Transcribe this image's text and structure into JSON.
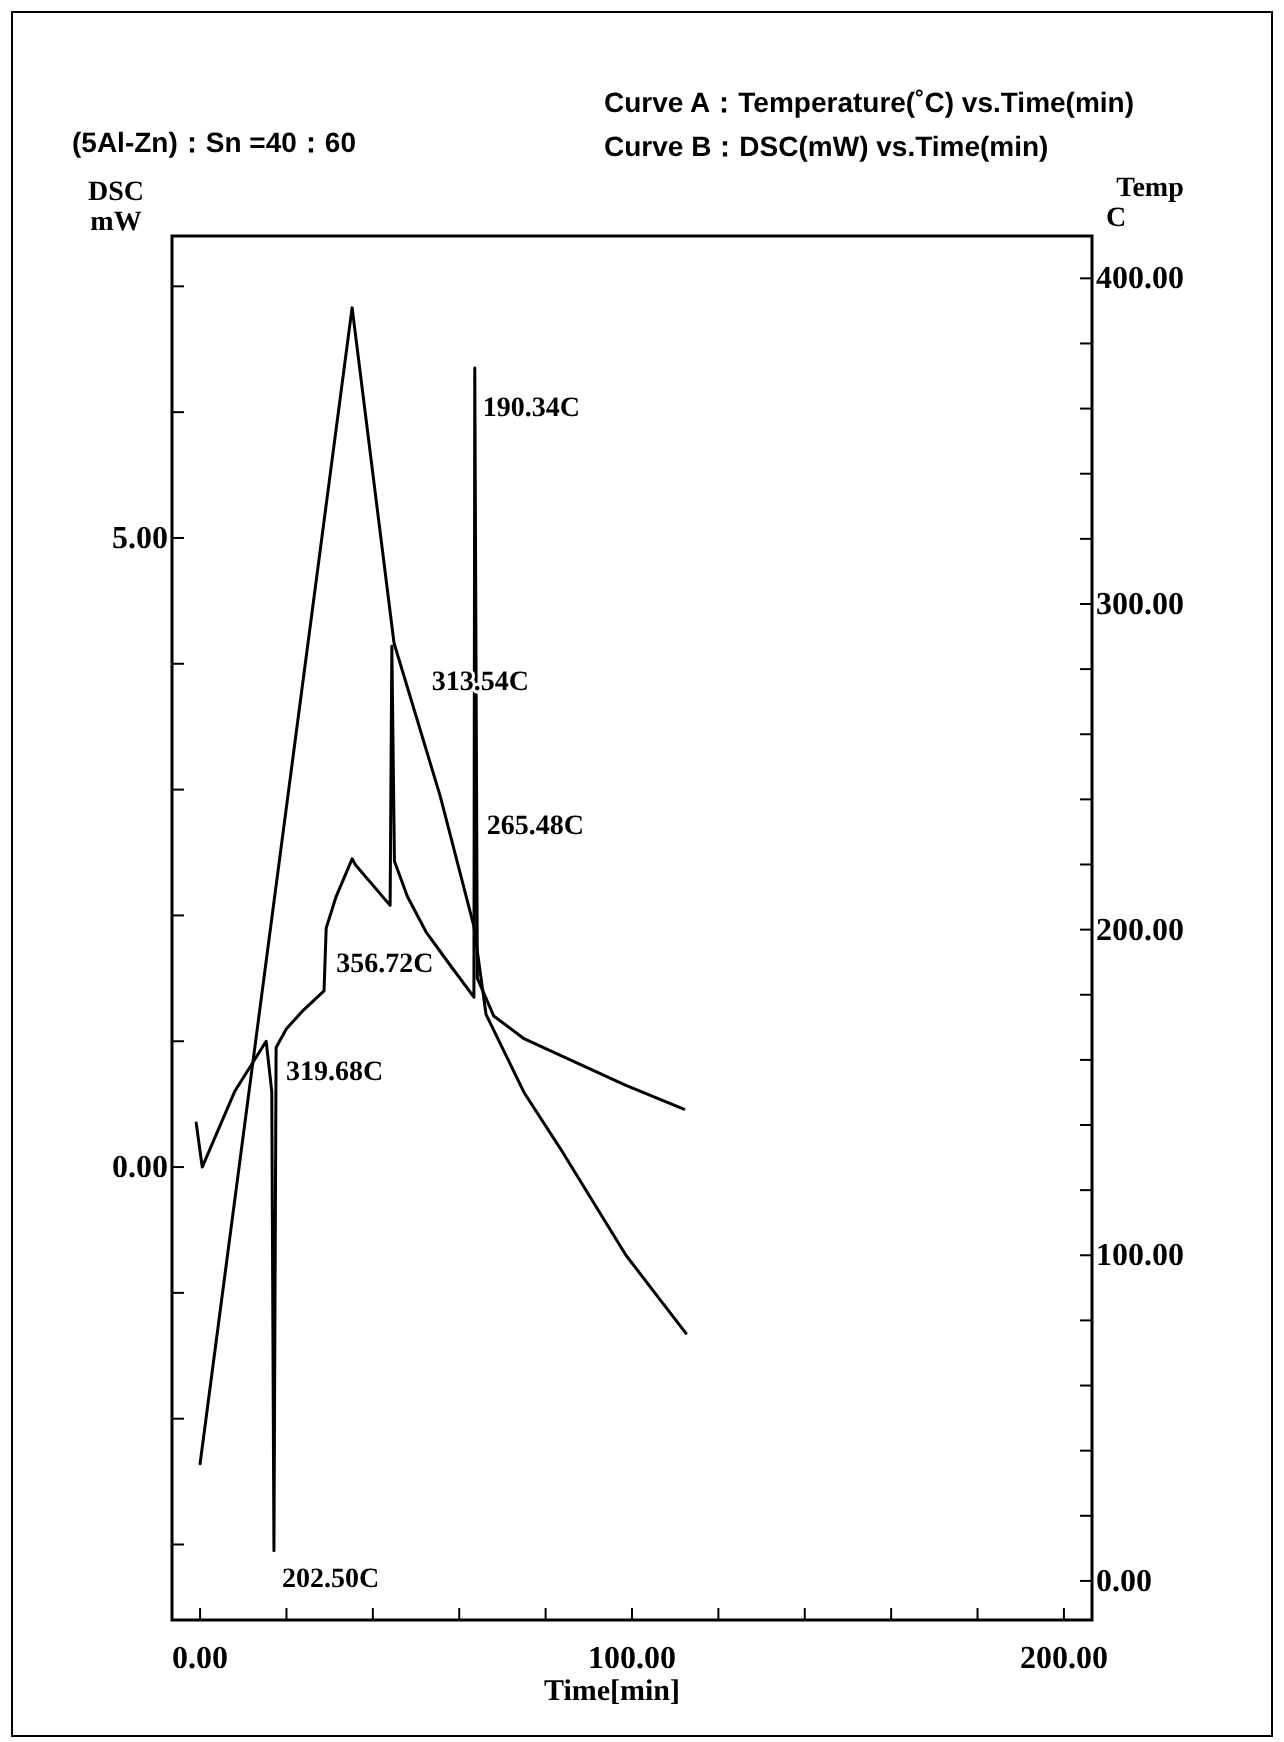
{
  "chart_data": {
    "type": "line",
    "title": "(5Al-Zn)：Sn =40：60",
    "annotations": [
      "Curve A：Temperature(˚C) vs.Time(min)",
      "Curve B：DSC(mW) vs.Time(min)",
      {
        "text": "190.34C",
        "x": 63.6,
        "y": 6.35
      },
      {
        "text": "313.54C",
        "x": 44.4,
        "y": 4.14
      },
      {
        "text": "265.48C",
        "x": 63.6,
        "y": 2.9
      },
      {
        "text": "356.72C",
        "x": 29.2,
        "y": 1.9
      },
      {
        "text": "319.68C",
        "x": 17.6,
        "y": 0.95
      },
      {
        "text": "202.50C",
        "x": 17.1,
        "y": -3.05
      }
    ],
    "xlabel": "Time[min]",
    "ylabel": "DSC\nmW",
    "y2label": "Temp\nC",
    "xlim": [
      -6.5,
      206.5
    ],
    "xticks": [
      {
        "value": 0,
        "label": "0.00"
      },
      {
        "value": 20,
        "label": null
      },
      {
        "value": 40,
        "label": null
      },
      {
        "value": 60,
        "label": null
      },
      {
        "value": 80,
        "label": null
      },
      {
        "value": 100,
        "label": "100.00"
      },
      {
        "value": 120,
        "label": null
      },
      {
        "value": 140,
        "label": null
      },
      {
        "value": 160,
        "label": null
      },
      {
        "value": 180,
        "label": null
      },
      {
        "value": 200,
        "label": "200.00"
      }
    ],
    "ylim": [
      -3.6,
      7.4
    ],
    "yticks": [
      {
        "value": -3,
        "label": null
      },
      {
        "value": -2,
        "label": null
      },
      {
        "value": -1,
        "label": null
      },
      {
        "value": 0,
        "label": "0.00"
      },
      {
        "value": 1,
        "label": null
      },
      {
        "value": 2,
        "label": null
      },
      {
        "value": 3,
        "label": null
      },
      {
        "value": 4,
        "label": null
      },
      {
        "value": 5,
        "label": "5.00"
      },
      {
        "value": 6,
        "label": null
      },
      {
        "value": 7,
        "label": null
      }
    ],
    "y2lim": [
      -12,
      413
    ],
    "y2ticks": [
      {
        "value": 0,
        "label": "0.00"
      },
      {
        "value": 20,
        "label": null
      },
      {
        "value": 40,
        "label": null
      },
      {
        "value": 60,
        "label": null
      },
      {
        "value": 80,
        "label": null
      },
      {
        "value": 100,
        "label": "100.00"
      },
      {
        "value": 120,
        "label": null
      },
      {
        "value": 140,
        "label": null
      },
      {
        "value": 160,
        "label": null
      },
      {
        "value": 180,
        "label": null
      },
      {
        "value": 200,
        "label": "200.00"
      },
      {
        "value": 220,
        "label": null
      },
      {
        "value": 240,
        "label": null
      },
      {
        "value": 260,
        "label": null
      },
      {
        "value": 280,
        "label": null
      },
      {
        "value": 300,
        "label": "300.00"
      },
      {
        "value": 320,
        "label": null
      },
      {
        "value": 340,
        "label": null
      },
      {
        "value": 360,
        "label": null
      },
      {
        "value": 380,
        "label": null
      },
      {
        "value": 400,
        "label": "400.00"
      }
    ],
    "grid": false,
    "marker": "none",
    "line_style": "solid",
    "series": [
      {
        "color": "#000000",
        "axis": "y2",
        "x": [
          0,
          35.2,
          44.9,
          55.6,
          63.4,
          66.2,
          75,
          83.3,
          98.6,
          112.5
        ],
        "values": [
          36,
          391,
          288,
          241,
          201,
          174,
          150,
          133,
          100,
          76
        ]
      },
      {
        "color": "#000000",
        "x": [
          -0.9,
          0.5,
          8,
          15.3,
          16.6,
          17.1,
          17.6,
          20,
          24,
          28.7,
          29.2,
          31.5,
          35.2,
          36,
          44,
          44.4,
          45,
          48,
          52.3,
          58,
          63.4,
          63.6,
          64.2,
          68,
          75,
          83.3,
          98.6,
          112
        ],
        "values": [
          0.35,
          0.0,
          0.6,
          1.0,
          0.6,
          -3.05,
          0.95,
          1.1,
          1.25,
          1.4,
          1.9,
          2.15,
          2.45,
          2.4,
          2.08,
          4.14,
          2.43,
          2.15,
          1.87,
          1.6,
          1.35,
          6.35,
          1.5,
          1.2,
          1.02,
          0.89,
          0.65,
          0.46
        ]
      }
    ]
  }
}
